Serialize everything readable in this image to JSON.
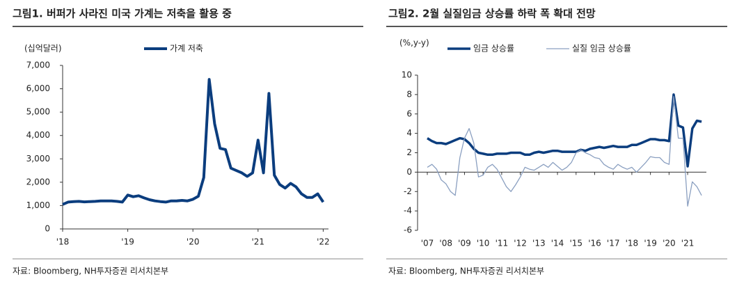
{
  "chart_data": [
    {
      "type": "line",
      "title": "그림1. 버퍼가 사라진 미국 가계는 저축을 활용 중",
      "y_label": "(십억달러)",
      "categories": [
        "'18",
        null,
        null,
        null,
        null,
        null,
        null,
        null,
        null,
        null,
        null,
        null,
        "'19",
        null,
        null,
        null,
        null,
        null,
        null,
        null,
        null,
        null,
        null,
        null,
        "'20",
        null,
        null,
        null,
        null,
        null,
        null,
        null,
        null,
        null,
        null,
        null,
        "'21",
        null,
        null,
        null,
        null,
        null,
        null,
        null,
        null,
        null,
        null,
        null,
        "'22"
      ],
      "series": [
        {
          "name": "가계 저축",
          "color": "#0b3d7e",
          "values": [
            1050,
            1150,
            1170,
            1180,
            1160,
            1170,
            1180,
            1200,
            1200,
            1200,
            1180,
            1150,
            1450,
            1380,
            1420,
            1330,
            1250,
            1200,
            1170,
            1150,
            1200,
            1200,
            1220,
            1200,
            1270,
            1400,
            2200,
            6400,
            4500,
            3450,
            3400,
            2600,
            2500,
            2400,
            2250,
            2400,
            3800,
            2400,
            5800,
            2300,
            1900,
            1750,
            1950,
            1800,
            1500,
            1350,
            1350,
            1500,
            1150
          ]
        }
      ],
      "ylim": [
        0,
        7000
      ],
      "yticks": [
        0,
        {
          "value": 1000,
          "label": "1,000"
        },
        {
          "value": 2000,
          "label": "2,000"
        },
        {
          "value": 3000,
          "label": "3,000"
        },
        {
          "value": 4000,
          "label": "4,000"
        },
        {
          "value": 5000,
          "label": "5,000"
        },
        {
          "value": 6000,
          "label": "6,000"
        },
        {
          "value": 7000,
          "label": "7,000"
        }
      ],
      "source": "자료: Bloomberg, NH투자증권 리서치본부"
    },
    {
      "type": "line",
      "title": "그림2. 2월 실질임금 상승률 하락 폭 확대 전망",
      "y_label": "(%,y-y)",
      "categories": [
        "'07",
        null,
        null,
        null,
        "'08",
        null,
        null,
        null,
        "'09",
        null,
        null,
        null,
        "'10",
        null,
        null,
        null,
        "'11",
        null,
        null,
        null,
        "'12",
        null,
        null,
        null,
        "'13",
        null,
        null,
        null,
        "'14",
        null,
        null,
        null,
        "'15",
        null,
        null,
        null,
        "'16",
        null,
        null,
        null,
        "'17",
        null,
        null,
        null,
        "'18",
        null,
        null,
        null,
        "'19",
        null,
        null,
        null,
        "'20",
        null,
        null,
        null,
        "'21",
        null,
        null,
        null
      ],
      "series": [
        {
          "name": "임금 상승률",
          "color": "#0b3d7e",
          "values": [
            3.5,
            3.2,
            3.0,
            3.0,
            2.9,
            3.1,
            3.3,
            3.5,
            3.4,
            3.0,
            2.4,
            2.0,
            1.9,
            1.8,
            1.8,
            1.9,
            1.9,
            1.9,
            2.0,
            2.0,
            2.0,
            1.8,
            1.8,
            2.0,
            2.1,
            2.0,
            2.1,
            2.2,
            2.2,
            2.1,
            2.1,
            2.1,
            2.1,
            2.3,
            2.2,
            2.4,
            2.5,
            2.6,
            2.5,
            2.6,
            2.7,
            2.6,
            2.6,
            2.6,
            2.8,
            2.8,
            3.0,
            3.2,
            3.4,
            3.4,
            3.3,
            3.3,
            3.2,
            8.0,
            4.8,
            4.6,
            0.6,
            4.5,
            5.3,
            5.2
          ]
        },
        {
          "name": "실질 임금 상승률",
          "color": "#8a9fc0",
          "values": [
            0.5,
            0.8,
            0.3,
            -0.8,
            -1.2,
            -2.0,
            -2.4,
            1.5,
            3.5,
            4.5,
            3.0,
            -0.5,
            -0.3,
            0.5,
            0.8,
            0.3,
            -0.6,
            -1.5,
            -2.0,
            -1.3,
            -0.5,
            0.5,
            0.3,
            0.2,
            0.5,
            0.8,
            0.5,
            1.0,
            0.6,
            0.2,
            0.5,
            1.0,
            2.0,
            2.3,
            2.0,
            1.8,
            1.5,
            1.4,
            0.8,
            0.5,
            0.3,
            0.8,
            0.5,
            0.3,
            0.5,
            0.0,
            0.5,
            1.0,
            1.6,
            1.5,
            1.5,
            1.0,
            0.8,
            7.8,
            3.5,
            3.5,
            -3.5,
            -1.0,
            -1.5,
            -2.4
          ]
        }
      ],
      "ylim": [
        -6,
        10
      ],
      "yticks": [
        -6,
        -4,
        -2,
        0,
        2,
        4,
        6,
        8,
        10
      ],
      "source": "자료: Bloomberg, NH투자증권 리서치본부"
    }
  ]
}
